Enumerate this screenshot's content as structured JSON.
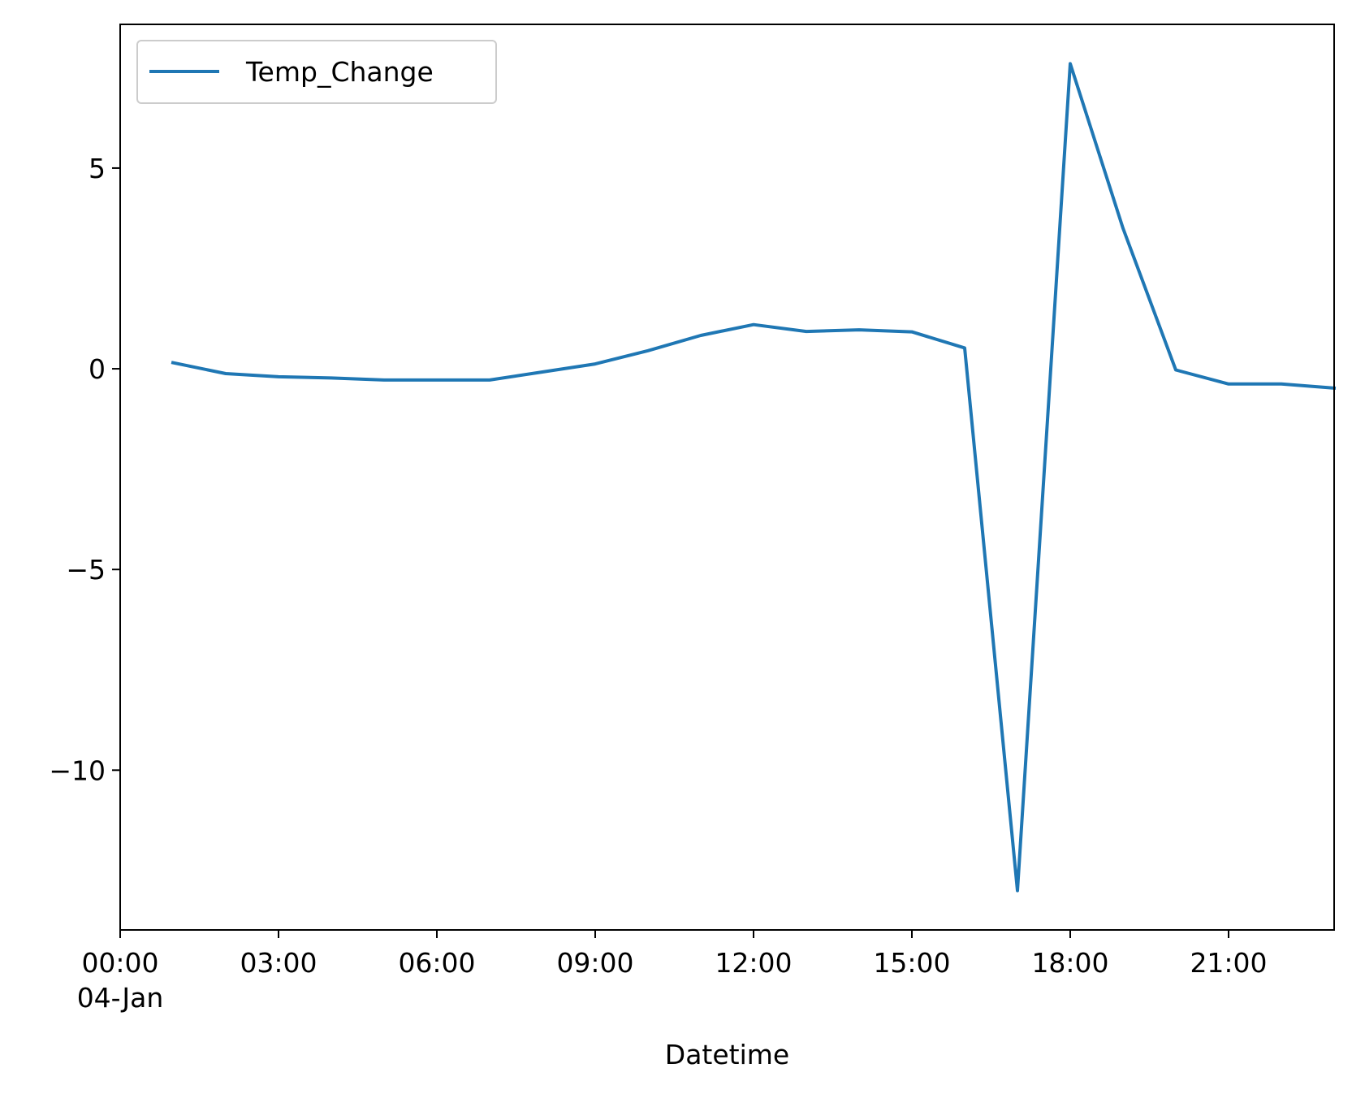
{
  "chart_data": {
    "type": "line",
    "title": "",
    "xlabel": "Datetime",
    "ylabel": "",
    "x_axis_kind": "datetime",
    "x": [
      "01:00",
      "02:00",
      "03:00",
      "04:00",
      "05:00",
      "06:00",
      "07:00",
      "08:00",
      "09:00",
      "10:00",
      "11:00",
      "12:00",
      "13:00",
      "14:00",
      "15:00",
      "16:00",
      "17:00",
      "18:00",
      "19:00",
      "20:00",
      "21:00",
      "22:00",
      "23:00"
    ],
    "series": [
      {
        "name": "Temp_Change",
        "color": "#1f77b4",
        "values": [
          0.15,
          -0.12,
          -0.2,
          -0.23,
          -0.28,
          -0.28,
          -0.28,
          -0.08,
          0.12,
          0.45,
          0.83,
          1.1,
          0.93,
          0.97,
          0.92,
          0.52,
          -13.0,
          7.6,
          3.5,
          -0.03,
          -0.38,
          -0.38,
          -0.48
        ]
      }
    ],
    "x_ticks": [
      {
        "time": "00:00",
        "label": "00:00",
        "sublabel": "04-Jan"
      },
      {
        "time": "03:00",
        "label": "03:00",
        "sublabel": ""
      },
      {
        "time": "06:00",
        "label": "06:00",
        "sublabel": ""
      },
      {
        "time": "09:00",
        "label": "09:00",
        "sublabel": ""
      },
      {
        "time": "12:00",
        "label": "12:00",
        "sublabel": ""
      },
      {
        "time": "15:00",
        "label": "15:00",
        "sublabel": ""
      },
      {
        "time": "18:00",
        "label": "18:00",
        "sublabel": ""
      },
      {
        "time": "21:00",
        "label": "21:00",
        "sublabel": ""
      }
    ],
    "y_ticks": [
      {
        "value": 5,
        "label": "5"
      },
      {
        "value": 0,
        "label": "0"
      },
      {
        "value": -5,
        "label": "−5"
      },
      {
        "value": -10,
        "label": "−10"
      }
    ],
    "xlim": [
      "00:00",
      "23:00"
    ],
    "ylim": [
      -13.98,
      8.58
    ],
    "grid": false,
    "legend_position": "upper-left"
  }
}
